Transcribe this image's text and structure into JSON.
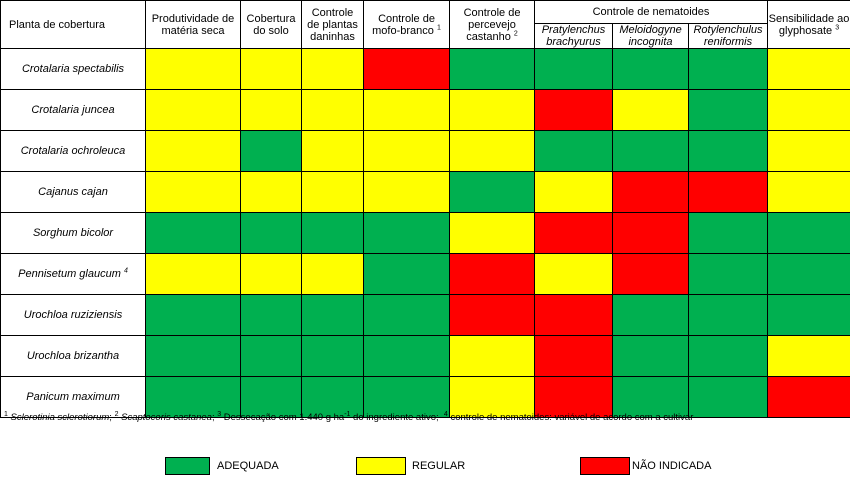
{
  "header": {
    "plant_col": "Planta de cobertura",
    "productivity": [
      "Produtividade de",
      "matéria seca"
    ],
    "soil_cover": [
      "Cobertura",
      "do solo"
    ],
    "weed_control": [
      "Controle",
      "de plantas",
      "daninhas"
    ],
    "white_mold": [
      "Controle de",
      "mofo-branco"
    ],
    "white_mold_sup": "1",
    "stink_bug": [
      "Controle de",
      "percevejo",
      "castanho"
    ],
    "stink_bug_sup": "2",
    "nematode_group": "Controle de nematoides",
    "nematodes": [
      [
        "Pratylenchus",
        "brachyurus"
      ],
      [
        "Meloidogyne",
        "incognita"
      ],
      [
        "Rotylenchulus",
        "reniformis"
      ]
    ],
    "glyphosate": [
      "Sensibilidade ao",
      "glyphosate"
    ],
    "glyphosate_sup": "3"
  },
  "rows": [
    {
      "plant": "Crotalaria spectabilis",
      "sup": "",
      "cells": [
        "Y",
        "Y",
        "Y",
        "R",
        "G",
        "G",
        "G",
        "G",
        "Y"
      ]
    },
    {
      "plant": "Crotalaria juncea",
      "sup": "",
      "cells": [
        "Y",
        "Y",
        "Y",
        "Y",
        "Y",
        "R",
        "Y",
        "G",
        "Y"
      ]
    },
    {
      "plant": "Crotalaria ochroleuca",
      "sup": "",
      "cells": [
        "Y",
        "G",
        "Y",
        "Y",
        "Y",
        "G",
        "G",
        "G",
        "Y"
      ]
    },
    {
      "plant": "Cajanus cajan",
      "sup": "",
      "cells": [
        "Y",
        "Y",
        "Y",
        "Y",
        "G",
        "Y",
        "R",
        "R",
        "Y"
      ]
    },
    {
      "plant": "Sorghum bicolor",
      "sup": "",
      "cells": [
        "G",
        "G",
        "G",
        "G",
        "Y",
        "R",
        "R",
        "G",
        "G"
      ]
    },
    {
      "plant": "Pennisetum glaucum",
      "sup": "4",
      "cells": [
        "Y",
        "Y",
        "Y",
        "G",
        "R",
        "Y",
        "R",
        "G",
        "G"
      ]
    },
    {
      "plant": "Urochloa ruziziensis",
      "sup": "",
      "cells": [
        "G",
        "G",
        "G",
        "G",
        "R",
        "R",
        "G",
        "G",
        "G"
      ]
    },
    {
      "plant": "Urochloa brizantha",
      "sup": "",
      "cells": [
        "G",
        "G",
        "G",
        "G",
        "Y",
        "R",
        "G",
        "G",
        "Y"
      ]
    },
    {
      "plant": "Panicum maximum",
      "sup": "",
      "cells": [
        "G",
        "G",
        "G",
        "G",
        "Y",
        "R",
        "G",
        "G",
        "R"
      ]
    }
  ],
  "footnote": {
    "n1": "1",
    "t1": "Sclerotinia sclerotiorum",
    "n2": "2",
    "t2": "Scaptocoris castanea",
    "n3": "3",
    "t3a": "Dessecação com 1.440 g ha",
    "t3exp": "-1",
    "t3b": " do ingrediente ativo;",
    "n4": "4",
    "t4": "controle de nematoides: variável de acordo com a cultivar"
  },
  "legend": [
    {
      "code": "G",
      "label": "ADEQUADA"
    },
    {
      "code": "Y",
      "label": "REGULAR"
    },
    {
      "code": "R",
      "label": "NÃO INDICADA"
    }
  ],
  "colors": {
    "G": "#00b050",
    "Y": "#ffff00",
    "R": "#ff0000"
  }
}
